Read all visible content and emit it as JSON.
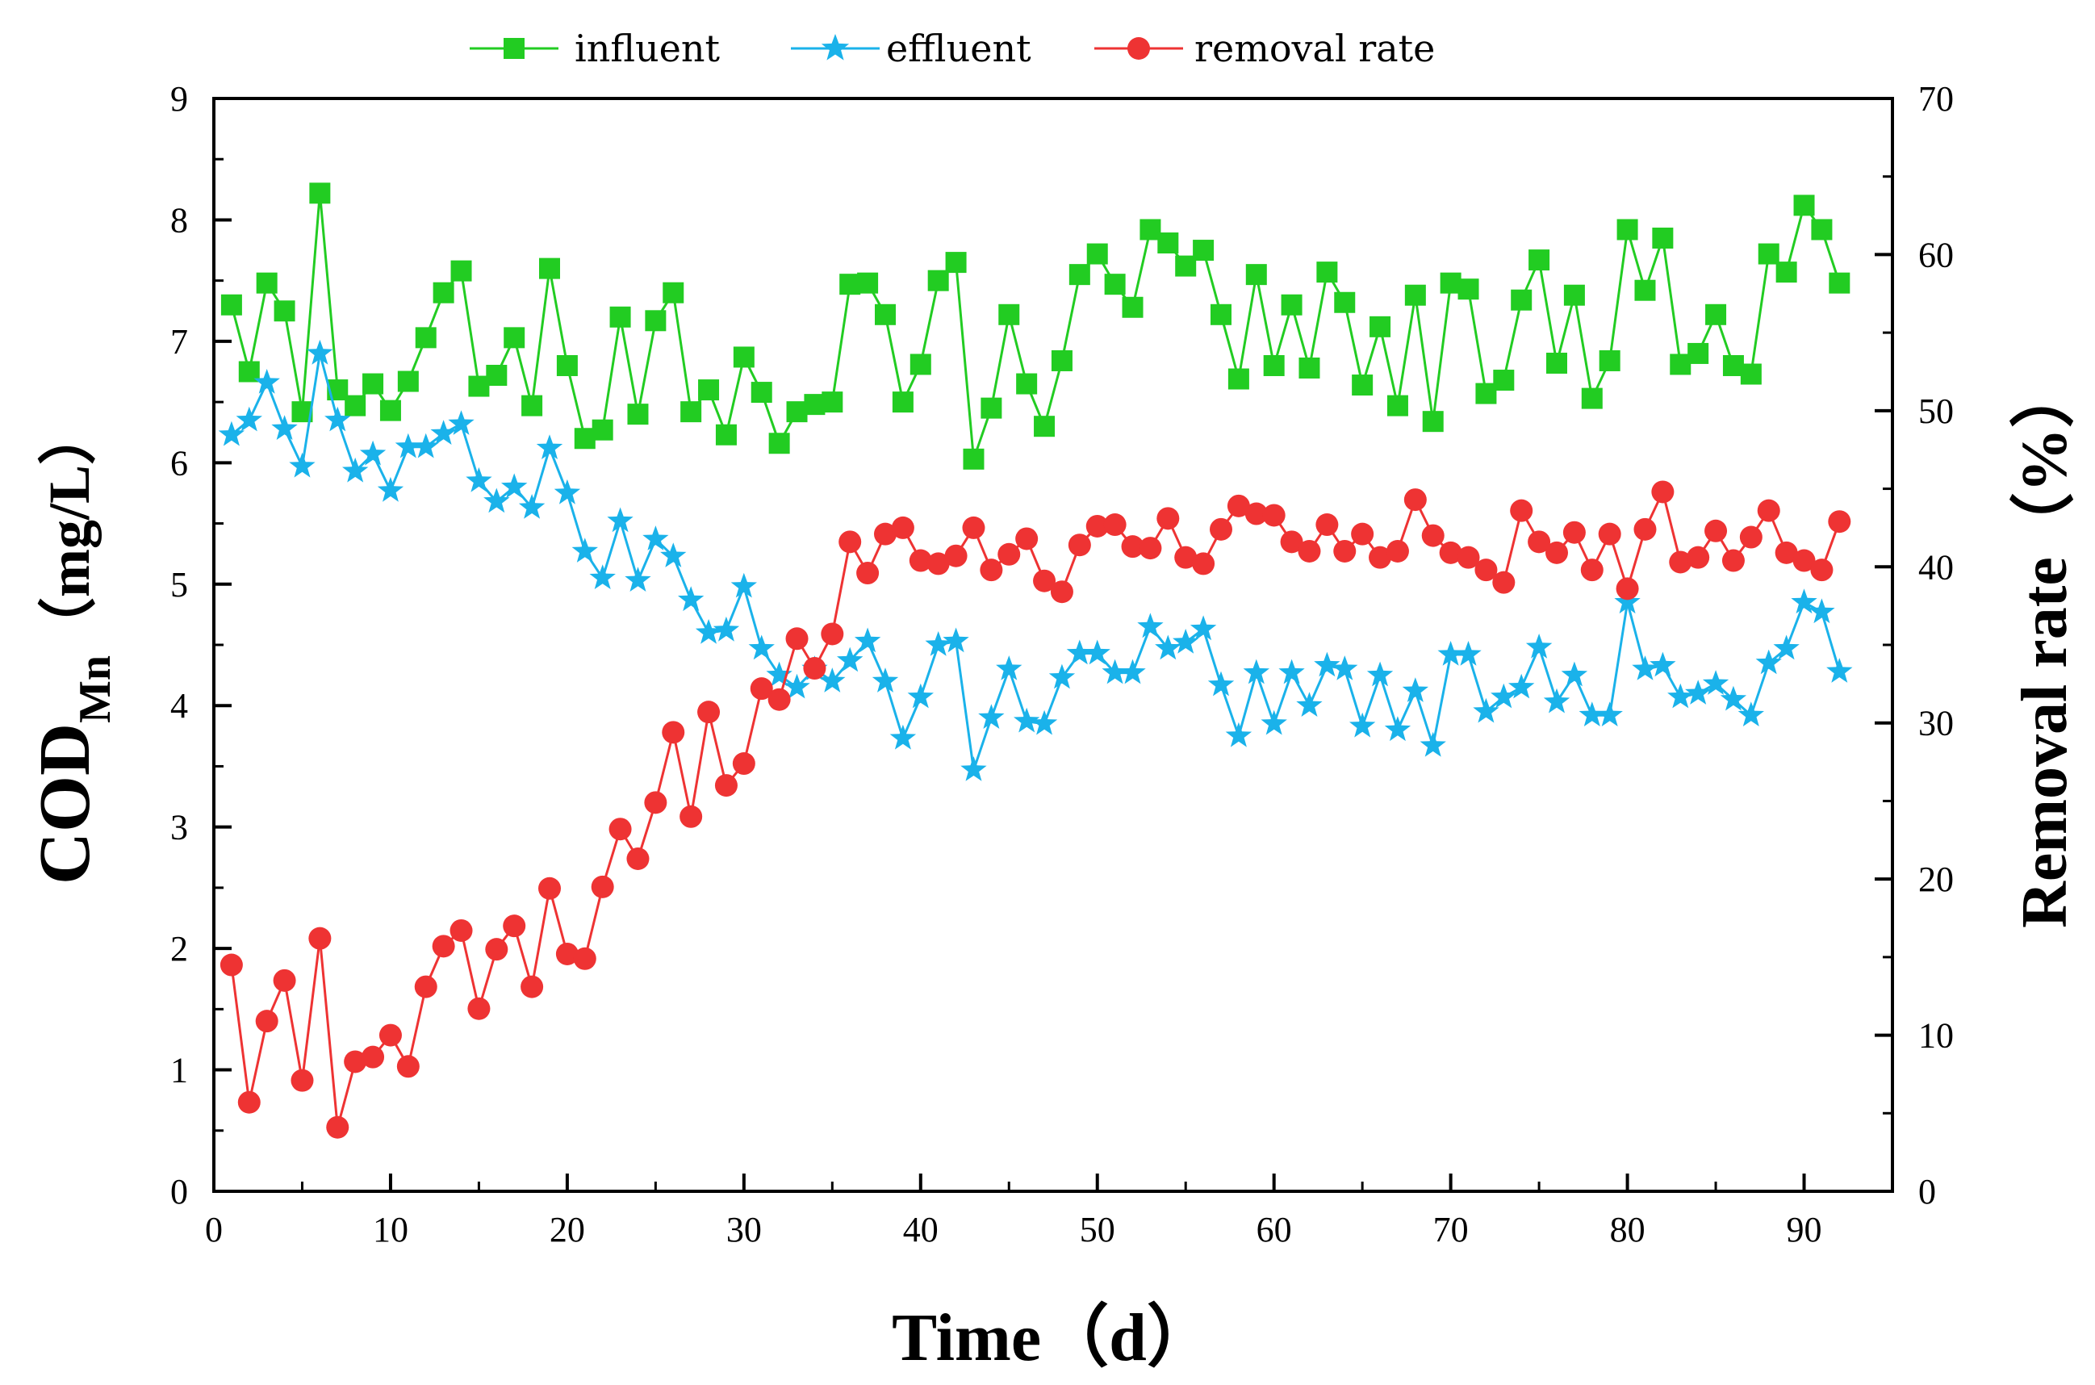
{
  "chart_data": {
    "type": "line",
    "title": "",
    "xlabel": "Time（d）",
    "ylabel_main": "COD",
    "ylabel_sub": "Mn",
    "ylabel_unit": "（mg/L）",
    "y2label": "Removal rate（%）",
    "xlim": [
      0,
      95
    ],
    "ylim": [
      0,
      9
    ],
    "y2lim": [
      0,
      70
    ],
    "xticks": [
      "0",
      "10",
      "20",
      "30",
      "40",
      "50",
      "60",
      "70",
      "80",
      "90"
    ],
    "xtick_values": [
      0,
      10,
      20,
      30,
      40,
      50,
      60,
      70,
      80,
      90
    ],
    "yticks": [
      "0",
      "1",
      "2",
      "3",
      "4",
      "5",
      "6",
      "7",
      "8",
      "9"
    ],
    "ytick_values": [
      0,
      1,
      2,
      3,
      4,
      5,
      6,
      7,
      8,
      9
    ],
    "y2ticks": [
      "0",
      "10",
      "20",
      "30",
      "40",
      "50",
      "60",
      "70"
    ],
    "y2tick_values": [
      0,
      10,
      20,
      30,
      40,
      50,
      60,
      70
    ],
    "legend_position": "top-center",
    "grid": false,
    "colors": {
      "influent": "#22cc22",
      "effluent": "#1ab2ea",
      "removal": "#ee3333"
    },
    "series": [
      {
        "name": "influent",
        "axis": "left",
        "marker": "square",
        "values": [
          7.3,
          6.75,
          7.48,
          7.25,
          6.42,
          8.22,
          6.6,
          6.47,
          6.65,
          6.43,
          6.67,
          7.03,
          7.4,
          7.58,
          6.63,
          6.72,
          7.03,
          6.47,
          7.6,
          6.8,
          6.2,
          6.27,
          7.2,
          6.4,
          7.17,
          7.4,
          6.42,
          6.6,
          6.23,
          6.87,
          6.58,
          6.16,
          6.42,
          6.48,
          6.5,
          7.47,
          7.48,
          7.22,
          6.5,
          6.81,
          7.5,
          7.65,
          6.03,
          6.45,
          7.22,
          6.65,
          6.3,
          6.84,
          7.55,
          7.72,
          7.47,
          7.28,
          7.92,
          7.81,
          7.62,
          7.75,
          7.22,
          6.69,
          7.55,
          6.8,
          7.3,
          6.78,
          7.57,
          7.32,
          6.64,
          7.12,
          6.47,
          7.38,
          6.34,
          7.48,
          7.43,
          6.57,
          6.68,
          7.34,
          7.67,
          6.82,
          7.38,
          6.53,
          6.84,
          7.92,
          7.42,
          7.85,
          6.81,
          6.9,
          7.22,
          6.8,
          6.73,
          7.72,
          7.57,
          8.12,
          7.92,
          7.48
        ]
      },
      {
        "name": "effluent",
        "axis": "left",
        "marker": "star",
        "values": [
          6.23,
          6.35,
          6.66,
          6.28,
          5.97,
          6.9,
          6.35,
          5.93,
          6.07,
          5.77,
          6.13,
          6.13,
          6.24,
          6.32,
          5.85,
          5.68,
          5.8,
          5.63,
          6.12,
          5.75,
          5.27,
          5.05,
          5.52,
          5.03,
          5.37,
          5.23,
          4.87,
          4.6,
          4.62,
          4.98,
          4.47,
          4.25,
          4.15,
          4.3,
          4.2,
          4.37,
          4.53,
          4.2,
          3.73,
          4.07,
          4.5,
          4.53,
          3.47,
          3.9,
          4.3,
          3.87,
          3.85,
          4.23,
          4.43,
          4.43,
          4.27,
          4.27,
          4.65,
          4.47,
          4.52,
          4.63,
          4.17,
          3.75,
          4.27,
          3.85,
          4.27,
          4.0,
          4.33,
          4.3,
          3.83,
          4.25,
          3.8,
          4.12,
          3.67,
          4.42,
          4.42,
          3.95,
          4.07,
          4.15,
          4.48,
          4.03,
          4.25,
          3.92,
          3.92,
          4.85,
          4.3,
          4.33,
          4.07,
          4.1,
          4.18,
          4.05,
          3.92,
          4.35,
          4.47,
          4.85,
          4.77,
          4.28
        ]
      },
      {
        "name": "removal rate",
        "axis": "right",
        "marker": "circle",
        "values": [
          14.5,
          5.7,
          10.9,
          13.5,
          7.1,
          16.2,
          4.1,
          8.3,
          8.6,
          10.0,
          8.0,
          13.1,
          15.7,
          16.7,
          11.7,
          15.5,
          17.0,
          13.1,
          19.4,
          15.2,
          14.9,
          19.5,
          23.2,
          21.3,
          24.9,
          29.4,
          24.0,
          30.7,
          26.0,
          27.4,
          32.2,
          31.5,
          35.4,
          33.5,
          35.7,
          41.6,
          39.6,
          42.1,
          42.5,
          40.4,
          40.2,
          40.7,
          42.5,
          39.8,
          40.8,
          41.8,
          39.1,
          38.4,
          41.4,
          42.6,
          42.7,
          41.3,
          41.2,
          43.1,
          40.6,
          40.2,
          42.4,
          43.9,
          43.4,
          43.3,
          41.6,
          41.0,
          42.7,
          41.0,
          42.1,
          40.6,
          41.0,
          44.3,
          42.0,
          40.9,
          40.6,
          39.8,
          39.0,
          43.6,
          41.6,
          40.9,
          42.2,
          39.8,
          42.1,
          38.6,
          42.4,
          44.8,
          40.3,
          40.6,
          42.3,
          40.4,
          41.9,
          43.6,
          40.9,
          40.4,
          39.8,
          42.9
        ]
      }
    ]
  }
}
